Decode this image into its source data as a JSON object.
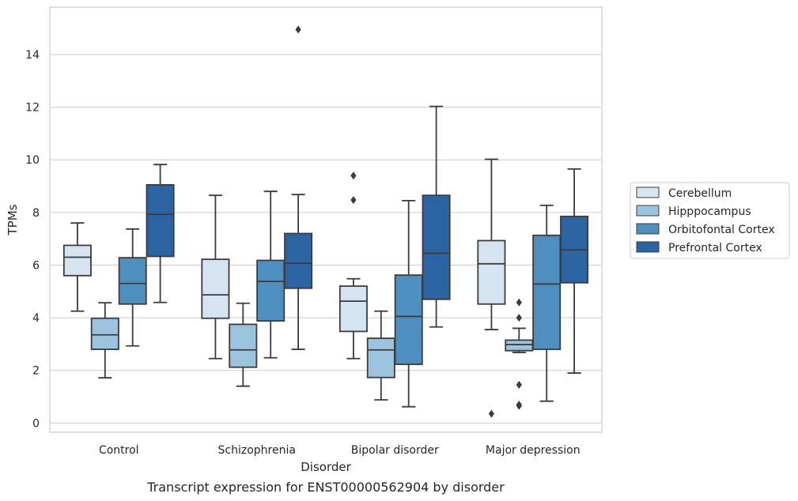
{
  "chart_data": {
    "type": "box",
    "caption": "Transcript expression for ENST00000562904 by disorder",
    "xlabel": "Disorder",
    "ylabel": "TPMs",
    "ylim": [
      -0.35,
      15.8
    ],
    "yticks": [
      0,
      2,
      4,
      6,
      8,
      10,
      12,
      14
    ],
    "grid": "horizontal",
    "legend_position": "right",
    "categories": [
      "Control",
      "Schizophrenia",
      "Bipolar disorder",
      "Major depression"
    ],
    "series": [
      {
        "name": "Cerebellum",
        "color": "#d6e4f2",
        "boxes": [
          {
            "min": 4.25,
            "q1": 5.6,
            "median": 6.3,
            "q3": 6.75,
            "max": 7.6,
            "outliers": []
          },
          {
            "min": 2.45,
            "q1": 3.98,
            "median": 4.87,
            "q3": 6.22,
            "max": 8.65,
            "outliers": []
          },
          {
            "min": 2.45,
            "q1": 3.48,
            "median": 4.63,
            "q3": 5.2,
            "max": 5.48,
            "outliers": [
              8.47,
              9.4
            ]
          },
          {
            "min": 3.55,
            "q1": 4.52,
            "median": 6.05,
            "q3": 6.93,
            "max": 10.02,
            "outliers": [
              0.35
            ]
          }
        ]
      },
      {
        "name": "Hipppocampus",
        "color": "#9cc3dd",
        "boxes": [
          {
            "min": 1.72,
            "q1": 2.8,
            "median": 3.35,
            "q3": 3.98,
            "max": 4.57,
            "outliers": []
          },
          {
            "min": 1.4,
            "q1": 2.12,
            "median": 2.78,
            "q3": 3.75,
            "max": 4.55,
            "outliers": []
          },
          {
            "min": 0.88,
            "q1": 1.73,
            "median": 2.78,
            "q3": 3.22,
            "max": 4.25,
            "outliers": []
          },
          {
            "min": 2.68,
            "q1": 2.75,
            "median": 2.98,
            "q3": 3.15,
            "max": 3.6,
            "outliers": [
              4.58,
              4.0,
              1.45,
              0.7,
              0.65
            ]
          }
        ]
      },
      {
        "name": "Orbitofontal Cortex",
        "color": "#4f8fbf",
        "boxes": [
          {
            "min": 2.93,
            "q1": 4.52,
            "median": 5.3,
            "q3": 6.28,
            "max": 7.37,
            "outliers": []
          },
          {
            "min": 2.48,
            "q1": 3.88,
            "median": 5.38,
            "q3": 6.18,
            "max": 8.8,
            "outliers": []
          },
          {
            "min": 0.62,
            "q1": 2.23,
            "median": 4.05,
            "q3": 5.62,
            "max": 8.45,
            "outliers": []
          },
          {
            "min": 0.83,
            "q1": 2.8,
            "median": 5.28,
            "q3": 7.13,
            "max": 8.27,
            "outliers": []
          }
        ]
      },
      {
        "name": "Prefrontal Cortex",
        "color": "#2b63a3",
        "boxes": [
          {
            "min": 4.58,
            "q1": 6.33,
            "median": 7.93,
            "q3": 9.05,
            "max": 9.82,
            "outliers": []
          },
          {
            "min": 2.8,
            "q1": 5.12,
            "median": 6.07,
            "q3": 7.2,
            "max": 8.68,
            "outliers": [
              14.95
            ]
          },
          {
            "min": 3.65,
            "q1": 4.7,
            "median": 6.45,
            "q3": 8.65,
            "max": 12.03,
            "outliers": []
          },
          {
            "min": 1.9,
            "q1": 5.33,
            "median": 6.58,
            "q3": 7.85,
            "max": 9.65,
            "outliers": []
          }
        ]
      }
    ]
  }
}
